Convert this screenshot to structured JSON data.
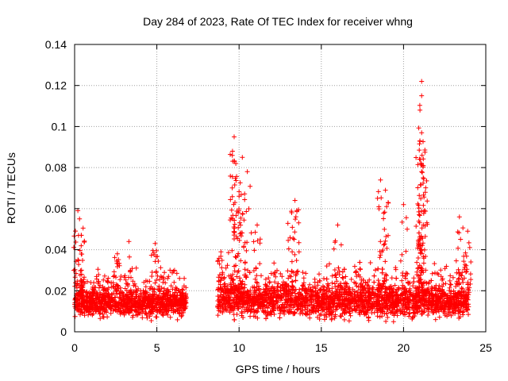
{
  "chart_data": {
    "type": "scatter",
    "title": "Day 284 of 2023, Rate Of TEC Index for receiver whng",
    "xlabel": "GPS time / hours",
    "ylabel": "ROTI / TECUs",
    "xlim": [
      0,
      25
    ],
    "ylim": [
      0,
      0.14
    ],
    "x_ticks": [
      0,
      5,
      10,
      15,
      20,
      25
    ],
    "x_tick_labels": [
      "0",
      "5",
      "10",
      "15",
      "20",
      "25"
    ],
    "y_ticks": [
      0,
      0.02,
      0.04,
      0.06,
      0.08,
      0.1,
      0.12,
      0.14
    ],
    "y_tick_labels": [
      "0",
      "0.02",
      "0.04",
      "0.06",
      "0.08",
      "0.1",
      "0.12",
      "0.14"
    ],
    "grid": true,
    "marker": "plus",
    "color": "#ff0000",
    "series": [
      {
        "name": "ROTI",
        "segments": [
          {
            "x_start": 0.0,
            "x_end": 6.8,
            "baseline": 0.014,
            "spread": 0.006
          },
          {
            "x_start": 8.7,
            "x_end": 24.0,
            "baseline": 0.015,
            "spread": 0.007
          }
        ],
        "peaks": [
          {
            "x": 0.2,
            "y": 0.059
          },
          {
            "x": 0.3,
            "y": 0.055
          },
          {
            "x": 0.4,
            "y": 0.047
          },
          {
            "x": 2.6,
            "y": 0.038
          },
          {
            "x": 3.3,
            "y": 0.044
          },
          {
            "x": 4.9,
            "y": 0.043
          },
          {
            "x": 8.9,
            "y": 0.039
          },
          {
            "x": 9.7,
            "y": 0.095
          },
          {
            "x": 9.6,
            "y": 0.088
          },
          {
            "x": 9.8,
            "y": 0.082
          },
          {
            "x": 10.2,
            "y": 0.085
          },
          {
            "x": 10.5,
            "y": 0.078
          },
          {
            "x": 10.0,
            "y": 0.066
          },
          {
            "x": 11.1,
            "y": 0.052
          },
          {
            "x": 13.4,
            "y": 0.064
          },
          {
            "x": 13.2,
            "y": 0.058
          },
          {
            "x": 16.0,
            "y": 0.052
          },
          {
            "x": 18.6,
            "y": 0.074
          },
          {
            "x": 18.9,
            "y": 0.069
          },
          {
            "x": 20.0,
            "y": 0.062
          },
          {
            "x": 21.1,
            "y": 0.122
          },
          {
            "x": 21.1,
            "y": 0.115
          },
          {
            "x": 21.0,
            "y": 0.108
          },
          {
            "x": 21.1,
            "y": 0.097
          },
          {
            "x": 21.0,
            "y": 0.093
          },
          {
            "x": 21.2,
            "y": 0.081
          },
          {
            "x": 21.1,
            "y": 0.078
          },
          {
            "x": 23.4,
            "y": 0.056
          },
          {
            "x": 23.9,
            "y": 0.049
          }
        ]
      }
    ]
  }
}
